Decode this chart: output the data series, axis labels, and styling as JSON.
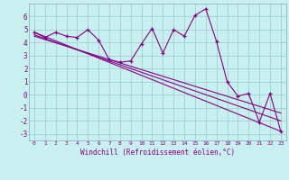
{
  "xlabel": "Windchill (Refroidissement éolien,°C)",
  "bg_color": "#c8f0f0",
  "line_color": "#880088",
  "grid_color": "#99cccc",
  "xlim": [
    -0.5,
    23.5
  ],
  "ylim": [
    -3.5,
    7.0
  ],
  "yticks": [
    -3,
    -2,
    -1,
    0,
    1,
    2,
    3,
    4,
    5,
    6
  ],
  "xticks": [
    0,
    1,
    2,
    3,
    4,
    5,
    6,
    7,
    8,
    9,
    10,
    11,
    12,
    13,
    14,
    15,
    16,
    17,
    18,
    19,
    20,
    21,
    22,
    23
  ],
  "series1_x": [
    0,
    1,
    2,
    3,
    4,
    5,
    6,
    7,
    8,
    9,
    10,
    11,
    12,
    13,
    14,
    15,
    16,
    17,
    18,
    19,
    20,
    21,
    22,
    23
  ],
  "series1_y": [
    4.8,
    4.4,
    4.8,
    4.5,
    4.4,
    5.0,
    4.2,
    2.7,
    2.5,
    2.6,
    3.9,
    5.1,
    3.2,
    5.0,
    4.5,
    6.1,
    6.6,
    4.1,
    1.0,
    -0.1,
    0.1,
    -2.1,
    0.1,
    -2.8
  ],
  "trend1_x": [
    0,
    23
  ],
  "trend1_y": [
    4.8,
    -2.8
  ],
  "trend2_x": [
    0,
    23
  ],
  "trend2_y": [
    4.6,
    -2.0
  ],
  "trend3_x": [
    0,
    23
  ],
  "trend3_y": [
    4.5,
    -1.4
  ]
}
